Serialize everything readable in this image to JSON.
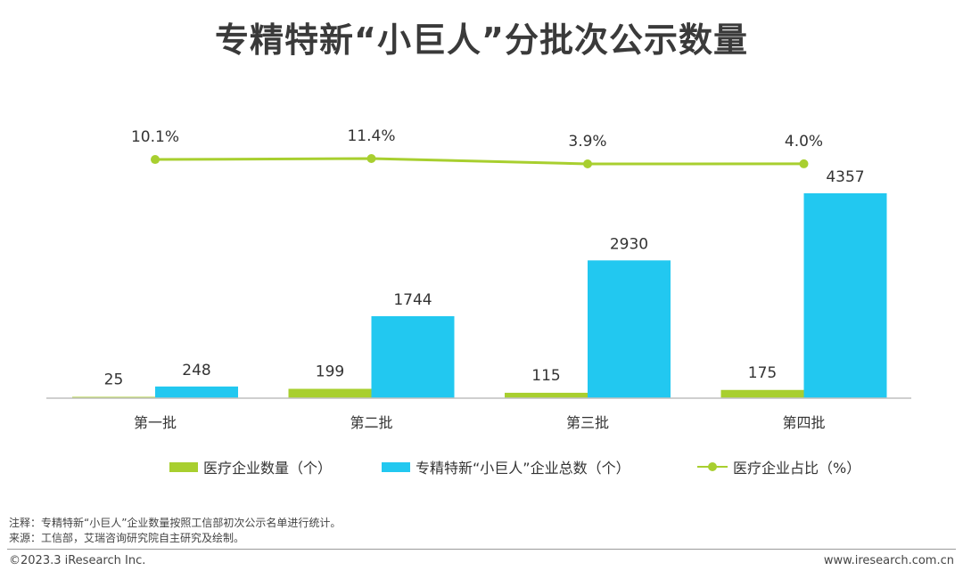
{
  "page": {
    "title": "专精特新“小巨人”分批次公示数量"
  },
  "chart_data": {
    "type": "bar+line",
    "title": "专精特新“小巨人”分批次公示数量",
    "categories": [
      "第一批",
      "第二批",
      "第三批",
      "第四批"
    ],
    "series": [
      {
        "name": "医疗企业数量（个）",
        "kind": "bar",
        "color": "#a8cf2f",
        "values": [
          25,
          199,
          115,
          175
        ]
      },
      {
        "name": "专精特新“小巨人”企业总数（个）",
        "kind": "bar",
        "color": "#22c8f0",
        "values": [
          248,
          1744,
          2930,
          4357
        ]
      },
      {
        "name": "医疗企业占比（%）",
        "kind": "line",
        "color": "#a8cf2f",
        "values": [
          10.1,
          11.4,
          3.9,
          4.0
        ],
        "labels": [
          "10.1%",
          "11.4%",
          "3.9%",
          "4.0%"
        ]
      }
    ],
    "bar_ylim": [
      0,
      4357
    ],
    "line_ylim": [
      0,
      11.4
    ],
    "legend_position": "bottom"
  },
  "notes": {
    "note": "注释：专精特新“小巨人”企业数量按照工信部初次公示名单进行统计。",
    "source": "来源：工信部，艾瑞咨询研究院自主研究及绘制。"
  },
  "footer": {
    "copyright": "©2023.3 iResearch Inc.",
    "website": "www.iresearch.com.cn"
  }
}
